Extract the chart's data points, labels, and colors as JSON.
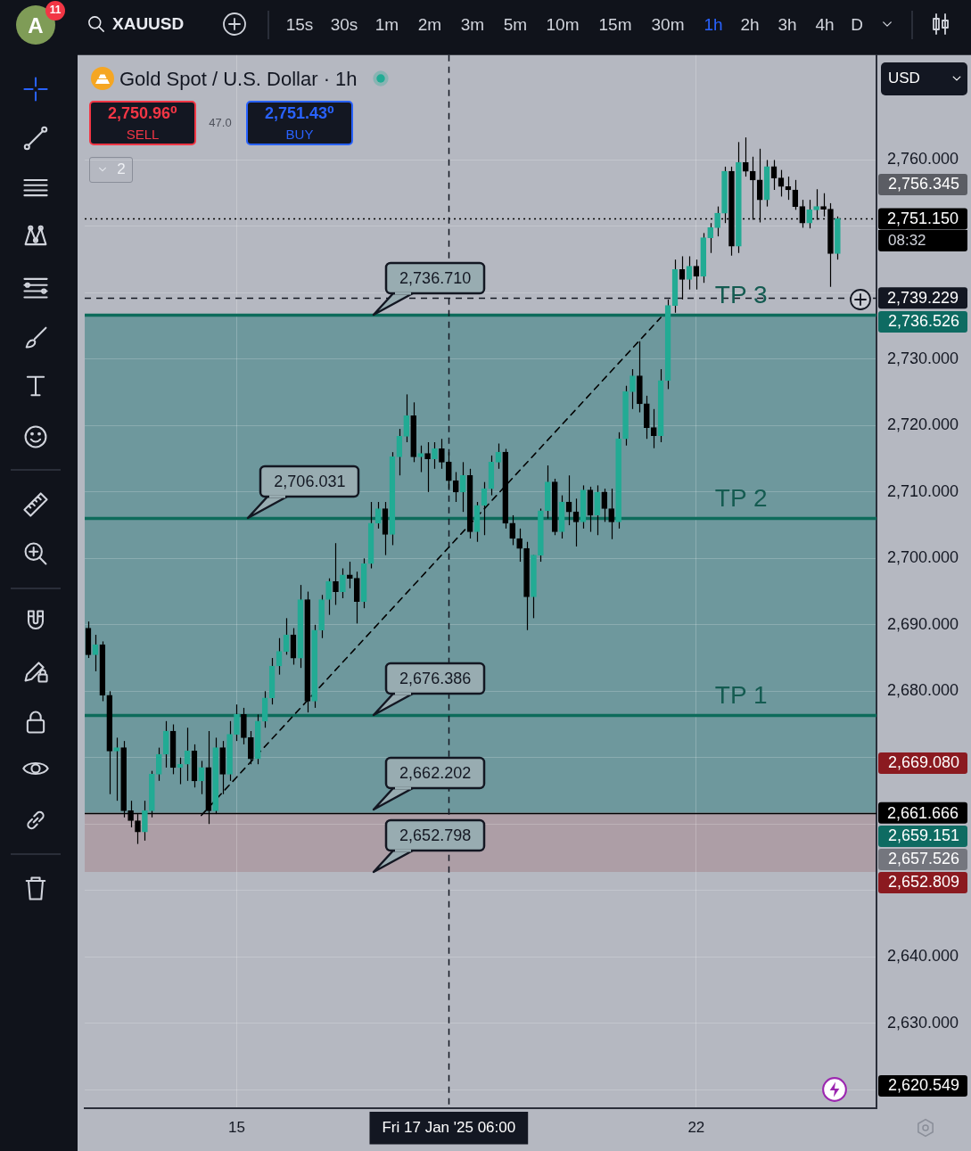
{
  "chart_data": {
    "type": "candlestick",
    "title": "Gold Spot / U.S. Dollar · 1h",
    "categories": [
      null,
      null,
      null,
      null,
      null,
      null,
      null,
      null,
      null,
      null,
      null,
      null,
      null,
      null,
      null,
      null,
      null,
      null,
      null,
      null,
      null,
      "15",
      null,
      null,
      null,
      null,
      null,
      null,
      null,
      null,
      null,
      null,
      null,
      null,
      null,
      null,
      null,
      null,
      null,
      null,
      null,
      null,
      null,
      null,
      null,
      null,
      null,
      null,
      null,
      null,
      null,
      "Fri 17 Jan '25 06:00",
      null,
      null,
      null,
      null,
      null,
      null,
      null,
      null,
      null,
      null,
      null,
      null,
      null,
      null,
      null,
      null,
      null,
      null,
      null,
      null,
      null,
      null,
      null,
      null,
      null,
      null,
      null,
      null,
      null,
      null,
      null,
      null,
      null,
      null,
      "22",
      null,
      null,
      null,
      null,
      null,
      null,
      null,
      null,
      null,
      null,
      null,
      null,
      null,
      null,
      null,
      null,
      null,
      null,
      null,
      null,
      null,
      null,
      null,
      null,
      null
    ],
    "ohlc": [
      [
        2689.5,
        2690.5,
        2685.0,
        2685.5
      ],
      [
        2685.5,
        2688.5,
        2683.0,
        2687.0
      ],
      [
        2687.0,
        2687.5,
        2678.5,
        2679.4
      ],
      [
        2679.4,
        2680.0,
        2664.5,
        2671.0
      ],
      [
        2671.0,
        2673.0,
        2663.5,
        2671.5
      ],
      [
        2671.5,
        2672.5,
        2661.0,
        2662.0
      ],
      [
        2662.0,
        2663.5,
        2659.5,
        2660.5
      ],
      [
        2660.5,
        2661.5,
        2657.0,
        2658.8
      ],
      [
        2658.8,
        2663.5,
        2657.5,
        2662.0
      ],
      [
        2662.0,
        2668.0,
        2661.0,
        2667.5
      ],
      [
        2667.5,
        2671.5,
        2666.5,
        2670.5
      ],
      [
        2670.5,
        2675.5,
        2668.5,
        2674.0
      ],
      [
        2674.0,
        2675.0,
        2667.5,
        2668.5
      ],
      [
        2668.5,
        2670.0,
        2666.0,
        2669.0
      ],
      [
        2669.0,
        2674.5,
        2666.5,
        2671.0
      ],
      [
        2671.0,
        2672.0,
        2665.5,
        2666.5
      ],
      [
        2666.5,
        2669.5,
        2664.5,
        2668.5
      ],
      [
        2668.5,
        2674.0,
        2660.0,
        2662.0
      ],
      [
        2662.0,
        2673.0,
        2661.5,
        2671.5
      ],
      [
        2671.5,
        2672.5,
        2664.5,
        2667.5
      ],
      [
        2667.5,
        2675.5,
        2666.5,
        2673.5
      ],
      [
        2673.5,
        2678.0,
        2672.5,
        2676.5
      ],
      [
        2676.5,
        2677.5,
        2672.0,
        2673.0
      ],
      [
        2673.0,
        2674.0,
        2669.0,
        2669.8
      ],
      [
        2669.8,
        2676.5,
        2669.0,
        2675.5
      ],
      [
        2675.5,
        2680.0,
        2674.5,
        2679.0
      ],
      [
        2679.0,
        2685.0,
        2678.0,
        2683.8
      ],
      [
        2683.8,
        2688.0,
        2682.5,
        2686.0
      ],
      [
        2686.0,
        2691.0,
        2685.5,
        2688.5
      ],
      [
        2688.5,
        2689.5,
        2684.0,
        2685.0
      ],
      [
        2685.0,
        2696.0,
        2683.5,
        2693.8
      ],
      [
        2693.8,
        2695.0,
        2676.8,
        2678.5
      ],
      [
        2678.5,
        2690.0,
        2677.5,
        2689.2
      ],
      [
        2689.2,
        2694.5,
        2688.0,
        2693.8
      ],
      [
        2693.8,
        2697.0,
        2691.5,
        2696.5
      ],
      [
        2696.5,
        2702.3,
        2693.0,
        2695.0
      ],
      [
        2695.0,
        2698.5,
        2694.0,
        2697.5
      ],
      [
        2697.5,
        2699.5,
        2695.5,
        2697.0
      ],
      [
        2697.0,
        2698.0,
        2690.2,
        2693.5
      ],
      [
        2693.5,
        2700.0,
        2692.5,
        2699.2
      ],
      [
        2699.2,
        2708.5,
        2698.5,
        2705.3
      ],
      [
        2705.3,
        2708.5,
        2704.5,
        2707.5
      ],
      [
        2707.5,
        2708.5,
        2700.5,
        2703.6
      ],
      [
        2703.6,
        2716.0,
        2702.0,
        2715.3
      ],
      [
        2715.3,
        2719.5,
        2712.5,
        2718.4
      ],
      [
        2718.4,
        2724.7,
        2717.5,
        2721.5
      ],
      [
        2721.5,
        2723.5,
        2714.5,
        2715.3
      ],
      [
        2715.3,
        2717.0,
        2713.0,
        2715.8
      ],
      [
        2715.8,
        2717.5,
        2710.0,
        2715.0
      ],
      [
        2715.0,
        2717.5,
        2713.5,
        2716.5
      ],
      [
        2716.5,
        2718.0,
        2713.5,
        2714.5
      ],
      [
        2714.5,
        2716.0,
        2710.5,
        2711.7
      ],
      [
        2711.7,
        2713.0,
        2708.5,
        2710.0
      ],
      [
        2710.0,
        2714.5,
        2707.0,
        2712.5
      ],
      [
        2712.5,
        2713.5,
        2703.0,
        2704.0
      ],
      [
        2704.0,
        2708.5,
        2702.5,
        2708.0
      ],
      [
        2708.0,
        2711.5,
        2703.5,
        2710.5
      ],
      [
        2710.5,
        2715.5,
        2709.5,
        2714.5
      ],
      [
        2714.5,
        2717.3,
        2713.5,
        2716.0
      ],
      [
        2716.0,
        2716.5,
        2704.5,
        2705.3
      ],
      [
        2705.3,
        2706.5,
        2702.0,
        2703.0
      ],
      [
        2703.0,
        2704.5,
        2699.5,
        2701.5
      ],
      [
        2701.5,
        2702.5,
        2689.2,
        2694.2
      ],
      [
        2694.2,
        2700.5,
        2691.0,
        2700.5
      ],
      [
        2700.5,
        2707.5,
        2699.5,
        2707.2
      ],
      [
        2707.2,
        2714.0,
        2706.0,
        2711.5
      ],
      [
        2711.5,
        2712.0,
        2703.5,
        2704.0
      ],
      [
        2704.0,
        2709.5,
        2703.0,
        2708.5
      ],
      [
        2708.5,
        2712.5,
        2705.0,
        2707.0
      ],
      [
        2707.0,
        2709.0,
        2701.8,
        2705.5
      ],
      [
        2705.5,
        2711.0,
        2704.5,
        2710.3
      ],
      [
        2710.3,
        2710.8,
        2704.0,
        2706.5
      ],
      [
        2706.5,
        2711.0,
        2703.5,
        2710.0
      ],
      [
        2710.0,
        2710.5,
        2705.5,
        2707.5
      ],
      [
        2707.5,
        2710.5,
        2702.9,
        2705.5
      ],
      [
        2705.5,
        2719.0,
        2704.5,
        2718.0
      ],
      [
        2718.0,
        2726.0,
        2717.0,
        2725.1
      ],
      [
        2725.1,
        2728.5,
        2722.5,
        2727.5
      ],
      [
        2727.5,
        2732.7,
        2722.0,
        2723.3
      ],
      [
        2723.3,
        2724.5,
        2718.0,
        2719.7
      ],
      [
        2719.7,
        2722.5,
        2716.6,
        2718.5
      ],
      [
        2718.5,
        2728.5,
        2717.5,
        2726.8
      ],
      [
        2726.8,
        2739.0,
        2725.5,
        2738.1
      ],
      [
        2738.1,
        2745.0,
        2737.0,
        2743.5
      ],
      [
        2743.5,
        2745.5,
        2739.0,
        2742.0
      ],
      [
        2742.0,
        2745.5,
        2740.5,
        2744.0
      ],
      [
        2744.0,
        2745.0,
        2740.5,
        2742.5
      ],
      [
        2742.5,
        2749.0,
        2741.5,
        2748.3
      ],
      [
        2748.3,
        2750.5,
        2746.0,
        2749.8
      ],
      [
        2749.8,
        2753.0,
        2748.5,
        2752.0
      ],
      [
        2752.0,
        2759.0,
        2750.5,
        2758.3
      ],
      [
        2758.3,
        2759.0,
        2745.6,
        2747.0
      ],
      [
        2747.0,
        2762.7,
        2746.0,
        2759.6
      ],
      [
        2759.6,
        2763.4,
        2757.5,
        2758.3
      ],
      [
        2758.3,
        2760.5,
        2751.0,
        2757.0
      ],
      [
        2757.0,
        2761.7,
        2750.6,
        2754.0
      ],
      [
        2754.0,
        2760.0,
        2753.0,
        2759.0
      ],
      [
        2759.0,
        2760.0,
        2755.5,
        2757.3
      ],
      [
        2757.3,
        2758.5,
        2754.5,
        2756.0
      ],
      [
        2756.0,
        2757.5,
        2754.0,
        2755.5
      ],
      [
        2755.5,
        2757.0,
        2752.5,
        2753.0
      ],
      [
        2753.0,
        2754.0,
        2749.8,
        2750.5
      ],
      [
        2750.5,
        2754.0,
        2749.7,
        2752.5
      ],
      [
        2752.5,
        2755.6,
        2751.0,
        2753.0
      ],
      [
        2753.0,
        2755.0,
        2751.5,
        2752.6
      ],
      [
        2752.6,
        2753.5,
        2740.9,
        2745.9
      ],
      [
        2745.9,
        2751.5,
        2745.0,
        2751.15
      ],
      null,
      null,
      null,
      null,
      null
    ],
    "colors": [
      "#000000",
      "#22ab94",
      "#000000",
      "#000000",
      "#22ab94",
      "#000000",
      "#000000",
      "#000000",
      "#22ab94",
      "#22ab94",
      "#22ab94",
      "#22ab94",
      "#000000",
      "#22ab94",
      "#22ab94",
      "#000000",
      "#22ab94",
      "#000000",
      "#22ab94",
      "#000000",
      "#22ab94",
      "#22ab94",
      "#000000",
      "#000000",
      "#22ab94",
      "#22ab94",
      "#22ab94",
      "#22ab94",
      "#22ab94",
      "#000000",
      "#22ab94",
      "#000000",
      "#22ab94",
      "#22ab94",
      "#22ab94",
      "#000000",
      "#22ab94",
      "#000000",
      "#000000",
      "#22ab94",
      "#22ab94",
      "#22ab94",
      "#000000",
      "#22ab94",
      "#22ab94",
      "#22ab94",
      "#000000",
      "#22ab94",
      "#000000",
      "#22ab94",
      "#000000",
      "#000000",
      "#000000",
      "#22ab94",
      "#000000",
      "#22ab94",
      "#22ab94",
      "#22ab94",
      "#22ab94",
      "#000000",
      "#000000",
      "#000000",
      "#000000",
      "#22ab94",
      "#22ab94",
      "#22ab94",
      "#000000",
      "#22ab94",
      "#000000",
      "#000000",
      "#22ab94",
      "#000000",
      "#22ab94",
      "#000000",
      "#000000",
      "#22ab94",
      "#22ab94",
      "#22ab94",
      "#000000",
      "#000000",
      "#000000",
      "#22ab94",
      "#22ab94",
      "#22ab94",
      "#000000",
      "#22ab94",
      "#000000",
      "#22ab94",
      "#22ab94",
      "#22ab94",
      "#22ab94",
      "#000000",
      "#22ab94",
      "#000000",
      "#000000",
      "#000000",
      "#22ab94",
      "#000000",
      "#000000",
      "#000000",
      "#000000",
      "#000000",
      "#22ab94",
      "#22ab94",
      "#000000",
      "#000000",
      "#22ab94",
      null,
      null,
      null,
      null,
      null
    ],
    "series": [
      {
        "type": "line",
        "color": "#000000",
        "line_style": "dashed",
        "values": [
          null,
          null,
          null,
          null,
          null,
          null,
          null,
          null,
          null,
          null,
          null,
          null,
          null,
          null,
          null,
          null,
          2661.3,
          null,
          null,
          null,
          null,
          null,
          null,
          null,
          null,
          null,
          null,
          null,
          null,
          null,
          null,
          null,
          null,
          null,
          null,
          null,
          null,
          null,
          null,
          null,
          null,
          null,
          null,
          null,
          null,
          null,
          null,
          null,
          null,
          null,
          null,
          null,
          null,
          null,
          null,
          null,
          null,
          null,
          null,
          null,
          null,
          null,
          null,
          null,
          null,
          null,
          null,
          null,
          null,
          null,
          null,
          null,
          null,
          null,
          null,
          null,
          null,
          null,
          null,
          null,
          null,
          2736.3,
          null,
          null,
          null,
          null,
          null,
          null,
          null,
          null,
          null,
          null,
          null,
          null,
          null,
          null,
          null,
          null,
          null,
          null,
          null,
          null,
          null,
          null,
          null,
          null,
          null,
          null,
          null,
          null,
          null,
          null
        ]
      }
    ],
    "ylim": [
      2617.2,
      2775.8
    ],
    "yticks": [
      {
        "value": 2620,
        "label": null
      },
      {
        "value": 2630,
        "label": "2,630.000"
      },
      {
        "value": 2640,
        "label": "2,640.000"
      },
      {
        "value": 2650,
        "label": null
      },
      {
        "value": 2660,
        "label": null
      },
      {
        "value": 2670,
        "label": null
      },
      {
        "value": 2680,
        "label": "2,680.000"
      },
      {
        "value": 2690,
        "label": "2,690.000"
      },
      {
        "value": 2700,
        "label": "2,700.000"
      },
      {
        "value": 2710,
        "label": "2,710.000"
      },
      {
        "value": 2720,
        "label": "2,720.000"
      },
      {
        "value": 2730,
        "label": "2,730.000"
      },
      {
        "value": 2740,
        "label": null
      },
      {
        "value": 2750,
        "label": null
      },
      {
        "value": 2760,
        "label": "2,760.000"
      }
    ],
    "grid": true,
    "bands": [
      {
        "axis": "y",
        "from": 2661.666,
        "to": 2736.71,
        "color": "#6e989d"
      },
      {
        "axis": "y",
        "from": 2652.798,
        "to": 2661.666,
        "color": "#ad9ea6"
      }
    ],
    "ref_lines": [
      {
        "axis": "y",
        "value": 2751.15,
        "label": "2,751.150",
        "color": "#000000",
        "line_style": "dotted"
      },
      {
        "axis": "y",
        "value": 2739.229,
        "label": "2,739.229",
        "color": "#131722",
        "line_style": "dashed"
      },
      {
        "axis": "y",
        "value": 2736.71,
        "color": "#0d6b5b",
        "line_style": "solid"
      },
      {
        "axis": "y",
        "value": 2706.031,
        "color": "#0d6b5b",
        "line_style": "solid"
      },
      {
        "axis": "y",
        "value": 2676.386,
        "color": "#0d6b5b",
        "line_style": "solid"
      },
      {
        "axis": "y",
        "value": 2661.666,
        "label": "2,661.666",
        "color": "#000000",
        "line_style": "solid"
      },
      {
        "axis": "x",
        "value": "Fri 17 Jan '25 06:00",
        "color": "#131722",
        "line_style": "dashed"
      }
    ],
    "annotations": [
      "A",
      "11",
      "XAUUSD",
      "15s",
      "30s",
      "1m",
      "2m",
      "3m",
      "5m",
      "10m",
      "15m",
      "30m",
      "1h",
      "2h",
      "3h",
      "4h",
      "D",
      "USD",
      "2,750.96⁰",
      "SELL",
      "47.0",
      "2,751.43⁰",
      "BUY",
      "2",
      "08:32",
      "2,756.345",
      "2,736.526",
      "2,669.080",
      "2,659.151",
      "2,657.526",
      "2,652.809",
      "2,620.549",
      {
        "text": "2,736.710",
        "y": 2736.71
      },
      {
        "text": "TP 3",
        "y": 2736.71
      },
      {
        "text": "2,706.031",
        "y": 2706.031
      },
      {
        "text": "TP 2",
        "y": 2706.031
      },
      {
        "text": "2,676.386",
        "y": 2676.386
      },
      {
        "text": "TP 1",
        "y": 2676.386
      },
      {
        "text": "2,662.202",
        "y": 2662.202
      },
      {
        "text": "2,652.798",
        "y": 2652.798
      }
    ]
  }
}
